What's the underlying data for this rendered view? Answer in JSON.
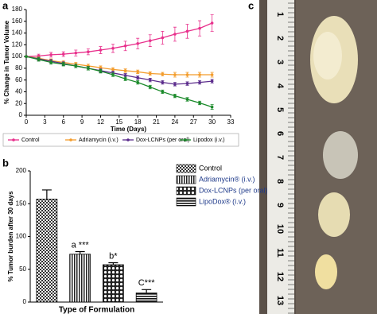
{
  "panel_labels": [
    "a",
    "b",
    "c"
  ],
  "chart_data": [
    {
      "type": "line",
      "x_label": "Time (Days)",
      "y_label": "% Change in Tumor Volume",
      "x": [
        0,
        2,
        4,
        6,
        8,
        10,
        12,
        14,
        16,
        18,
        20,
        22,
        24,
        26,
        28,
        30
      ],
      "series": [
        {
          "name": "Control",
          "color": "#e8308c",
          "values": [
            100,
            101,
            103,
            104,
            106,
            108,
            111,
            114,
            118,
            122,
            127,
            132,
            138,
            143,
            148,
            157
          ],
          "errors": [
            0,
            3,
            4,
            4,
            5,
            5,
            6,
            7,
            8,
            9,
            10,
            11,
            12,
            12,
            13,
            14
          ]
        },
        {
          "name": "Adriamycin (i.v.)",
          "color": "#f39c2b",
          "values": [
            100,
            97,
            93,
            90,
            87,
            84,
            81,
            78,
            76,
            74,
            71,
            70,
            69,
            69,
            69,
            69
          ],
          "errors": [
            0,
            3,
            3,
            3,
            3,
            3,
            3,
            3,
            3,
            3,
            3,
            3,
            4,
            4,
            4,
            4
          ]
        },
        {
          "name": "Dox-LCNPs (per oral)",
          "color": "#5b2c8c",
          "values": [
            100,
            96,
            92,
            88,
            84,
            80,
            76,
            72,
            68,
            64,
            60,
            56,
            53,
            54,
            56,
            58
          ],
          "errors": [
            0,
            3,
            3,
            3,
            3,
            3,
            3,
            3,
            3,
            3,
            3,
            3,
            3,
            3,
            3,
            3
          ]
        },
        {
          "name": "Lipodox (i.v.)",
          "color": "#1a8a2a",
          "values": [
            100,
            95,
            90,
            87,
            84,
            80,
            75,
            69,
            62,
            56,
            48,
            40,
            33,
            27,
            21,
            14
          ],
          "errors": [
            0,
            3,
            3,
            3,
            3,
            3,
            3,
            3,
            3,
            3,
            3,
            3,
            3,
            3,
            3,
            4
          ]
        }
      ],
      "xlim": [
        0,
        33
      ],
      "xticks": [
        0,
        3,
        6,
        9,
        12,
        15,
        18,
        21,
        24,
        27,
        30,
        33
      ],
      "ylim": [
        0,
        180
      ],
      "yticks": [
        0,
        20,
        40,
        60,
        80,
        100,
        120,
        140,
        160,
        180
      ]
    },
    {
      "type": "bar",
      "x_label": "Type of Formulation",
      "y_label": "% Tumor burden after 30 days",
      "categories": [
        "Control",
        "Adriamycin® (i.v.)",
        "Dox-LCNPs (per oral)",
        "LipoDox® (i.v.)"
      ],
      "values": [
        157,
        73,
        57,
        14
      ],
      "errors": [
        14,
        4,
        3,
        5
      ],
      "annotations": [
        null,
        "a ***",
        "b*",
        "C***"
      ],
      "patterns": [
        "checker",
        "vlines",
        "dots",
        "hlines"
      ],
      "ylim": [
        0,
        200
      ],
      "yticks": [
        0,
        50,
        100,
        150,
        200
      ]
    }
  ],
  "photo": {
    "ruler": [
      1,
      2,
      3,
      4,
      5,
      6,
      7,
      8,
      9,
      10,
      11,
      12,
      13
    ]
  }
}
